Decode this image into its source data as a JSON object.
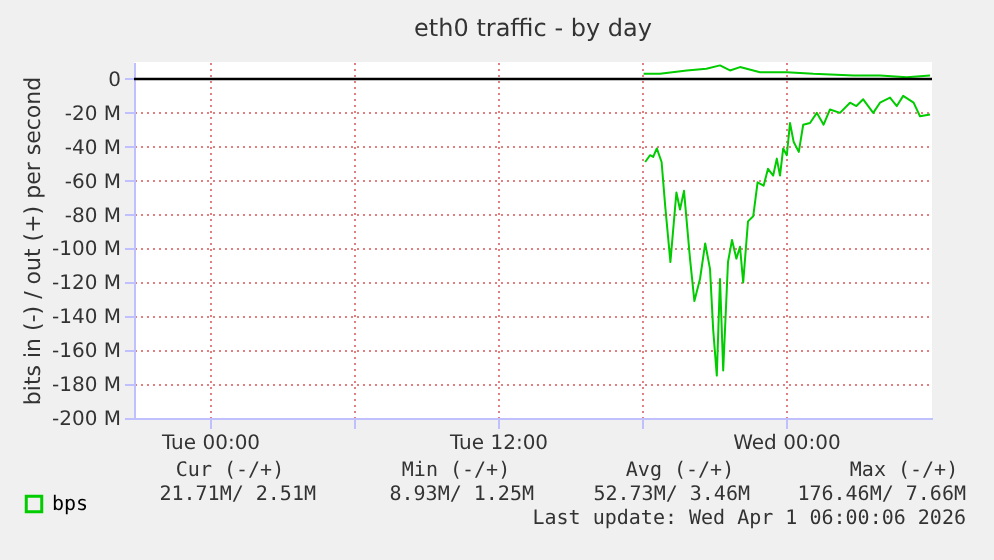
{
  "chart_data": {
    "type": "line",
    "title": "eth0 traffic - by day",
    "ylabel": "bits in (-) / out (+) per second",
    "xlim": [
      "2026-03-30T20:50",
      "2026-04-01T06:05"
    ],
    "xticks": [
      {
        "value": "2026-03-31T00:00",
        "label": "Tue 00:00"
      },
      {
        "value": "2026-03-31T06:00",
        "label": null
      },
      {
        "value": "2026-03-31T12:00",
        "label": "Tue 12:00"
      },
      {
        "value": "2026-03-31T18:00",
        "label": null
      },
      {
        "value": "2026-04-01T00:00",
        "label": "Wed 00:00"
      }
    ],
    "ylim": [
      -200,
      10
    ],
    "yticks": [
      {
        "value": 0,
        "label": "0"
      },
      {
        "value": -20,
        "label": "-20 M"
      },
      {
        "value": -40,
        "label": "-40 M"
      },
      {
        "value": -60,
        "label": "-60 M"
      },
      {
        "value": -80,
        "label": "-80 M"
      },
      {
        "value": -100,
        "label": "-100 M"
      },
      {
        "value": -120,
        "label": "-120 M"
      },
      {
        "value": -140,
        "label": "-140 M"
      },
      {
        "value": -160,
        "label": "-160 M"
      },
      {
        "value": -180,
        "label": "-180 M"
      },
      {
        "value": -200,
        "label": "-200 M"
      }
    ],
    "grid": true,
    "legend": "bottom left",
    "series": [
      {
        "name": "bps",
        "color": "#00cc00",
        "x": [
          "2026-03-31T18:08",
          "2026-03-31T18:20",
          "2026-03-31T18:28",
          "2026-03-31T18:37",
          "2026-03-31T18:49",
          "2026-03-31T18:58",
          "2026-03-31T19:11",
          "2026-03-31T19:26",
          "2026-03-31T19:35",
          "2026-03-31T19:45",
          "2026-03-31T20:00",
          "2026-03-31T20:11",
          "2026-03-31T20:25",
          "2026-03-31T20:38",
          "2026-03-31T20:50",
          "2026-03-31T20:58",
          "2026-03-31T21:07",
          "2026-03-31T21:15",
          "2026-03-31T21:23",
          "2026-03-31T21:35",
          "2026-03-31T21:45",
          "2026-03-31T21:56",
          "2026-03-31T22:05",
          "2026-03-31T22:13",
          "2026-03-31T22:25",
          "2026-03-31T22:38",
          "2026-03-31T22:49",
          "2026-03-31T23:04",
          "2026-03-31T23:15",
          "2026-03-31T23:28",
          "2026-03-31T23:37",
          "2026-03-31T23:45",
          "2026-03-31T23:53",
          "2026-04-01T00:02",
          "2026-04-01T00:10",
          "2026-04-01T00:19",
          "2026-04-01T00:32",
          "2026-04-01T00:43",
          "2026-04-01T01:00",
          "2026-04-01T01:17",
          "2026-04-01T01:34",
          "2026-04-01T01:50",
          "2026-04-01T02:15",
          "2026-04-01T02:40",
          "2026-04-01T02:56",
          "2026-04-01T03:13",
          "2026-04-01T03:38",
          "2026-04-01T03:55",
          "2026-04-01T04:20",
          "2026-04-01T04:37",
          "2026-04-01T04:53",
          "2026-04-01T05:19",
          "2026-04-01T05:35",
          "2026-04-01T06:00"
        ],
        "values": [
          -49,
          -45,
          -46,
          -41,
          -49,
          -75,
          -108,
          -67,
          -77,
          -66,
          -106,
          -131,
          -118,
          -97,
          -112,
          -148,
          -175,
          -118,
          -172,
          -108,
          -95,
          -106,
          -99,
          -120,
          -84,
          -81,
          -61,
          -63,
          -53,
          -57,
          -47,
          -57,
          -41,
          -45,
          -26,
          -37,
          -43,
          -27,
          -26,
          -20,
          -27,
          -18,
          -20,
          -14,
          -16,
          -12,
          -20,
          -14,
          -11,
          -16,
          -10,
          -14,
          -22,
          -21
        ]
      },
      {
        "color": "#00cc00",
        "x": [
          "2026-03-31T18:04",
          "2026-03-31T18:45",
          "2026-03-31T19:52",
          "2026-03-31T20:41",
          "2026-03-31T21:15",
          "2026-03-31T21:40",
          "2026-03-31T22:05",
          "2026-03-31T22:55",
          "2026-04-01T00:02",
          "2026-04-01T01:08",
          "2026-04-01T02:49",
          "2026-04-01T03:55",
          "2026-04-01T05:02",
          "2026-04-01T06:00"
        ],
        "values": [
          3,
          3,
          5,
          6,
          8,
          5,
          7,
          4,
          4,
          3,
          2,
          2,
          1,
          2
        ]
      }
    ],
    "ref_lines": [
      {
        "axis": "y",
        "value": 0,
        "color": "#000000"
      }
    ],
    "annotations": [
      "Cur (-/+)",
      "Min (-/+)",
      "Avg (-/+)",
      "Max (-/+)",
      "21.71M/ 2.51M",
      "8.93M/ 1.25M",
      "52.73M/ 3.46M",
      "176.46M/ 7.66M",
      "Last update: Wed Apr 1 06:00:06 2026"
    ]
  }
}
